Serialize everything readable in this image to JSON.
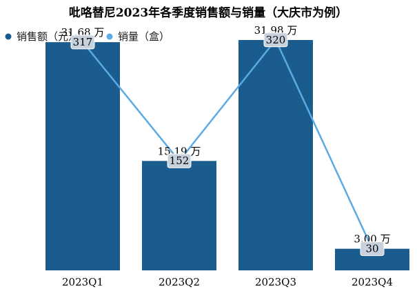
{
  "chart_data": {
    "type": "bar",
    "title": "吡咯替尼2023年各季度销售额与销量（大庆市为例）",
    "categories": [
      "2023Q1",
      "2023Q2",
      "2023Q3",
      "2023Q4"
    ],
    "series": [
      {
        "name": "销售额（元）",
        "type": "bar",
        "values": [
          316800,
          151900,
          319800,
          30000
        ],
        "value_labels": [
          "31.68 万",
          "15.19 万",
          "31.98 万",
          "3.00 万"
        ],
        "color": "#1b5c8f"
      },
      {
        "name": "销量（盒）",
        "type": "line",
        "values": [
          317,
          152,
          320,
          30
        ],
        "value_labels": [
          "317",
          "152",
          "320",
          "30"
        ],
        "color": "#5aabe3"
      }
    ],
    "legend_position": "top-left",
    "grid": false,
    "bar_ylim": [
      0,
      360000
    ],
    "line_ylim": [
      0,
      360
    ]
  }
}
